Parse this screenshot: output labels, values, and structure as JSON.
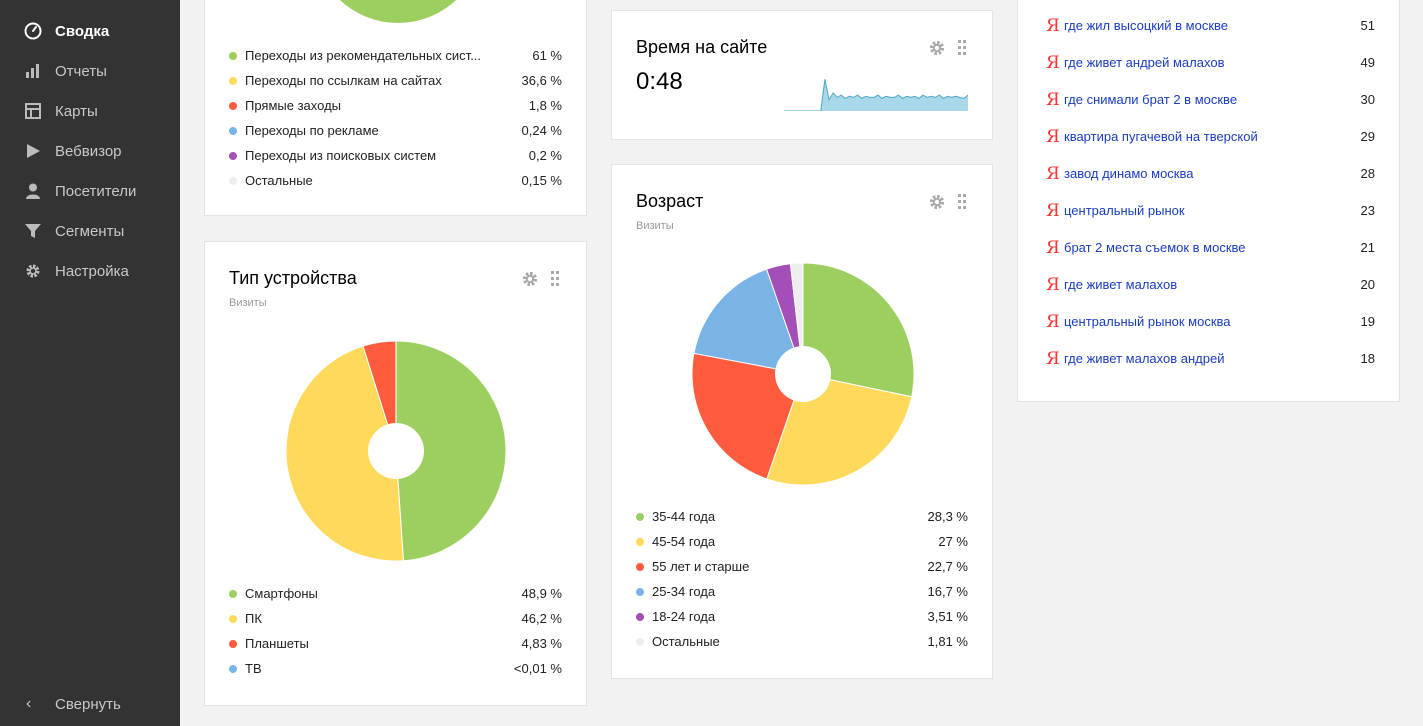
{
  "sidebar": {
    "items": [
      {
        "label": "Сводка",
        "icon": "gauge-icon",
        "active": true
      },
      {
        "label": "Отчеты",
        "icon": "bar-chart-icon",
        "active": false
      },
      {
        "label": "Карты",
        "icon": "map-icon",
        "active": false
      },
      {
        "label": "Вебвизор",
        "icon": "play-icon",
        "active": false
      },
      {
        "label": "Посетители",
        "icon": "person-icon",
        "active": false
      },
      {
        "label": "Сегменты",
        "icon": "funnel-icon",
        "active": false
      },
      {
        "label": "Настройка",
        "icon": "gear-icon",
        "active": false
      }
    ],
    "collapse_label": "Свернуть",
    "collapse_icon": "chevron-left-icon"
  },
  "sources": {
    "rows": [
      {
        "name": "Переходы из рекомендательных сист...",
        "value": "61 %",
        "color": "#9ccf5f"
      },
      {
        "name": "Переходы по ссылкам на сайтах",
        "value": "36,6 %",
        "color": "#ffd95c"
      },
      {
        "name": "Прямые заходы",
        "value": "1,8 %",
        "color": "#ff5b3e"
      },
      {
        "name": "Переходы по рекламе",
        "value": "0,24 %",
        "color": "#7ab4e6"
      },
      {
        "name": "Переходы из поисковых систем",
        "value": "0,2 %",
        "color": "#a44fb8"
      },
      {
        "name": "Остальные",
        "value": "0,15 %",
        "color": "#eeeeee"
      }
    ]
  },
  "devices": {
    "title": "Тип устройства",
    "subtitle": "Визиты",
    "rows": [
      {
        "name": "Смартфоны",
        "value": "48,9 %",
        "color": "#9ccf5f"
      },
      {
        "name": "ПК",
        "value": "46,2 %",
        "color": "#ffd95c"
      },
      {
        "name": "Планшеты",
        "value": "4,83 %",
        "color": "#ff5b3e"
      },
      {
        "name": "ТВ",
        "value": "<0,01 %",
        "color": "#7ab4e6"
      }
    ]
  },
  "time_on_site": {
    "title": "Время на сайте",
    "value": "0:48",
    "sparkline_color": "#a8d8ea"
  },
  "age": {
    "title": "Возраст",
    "subtitle": "Визиты",
    "rows": [
      {
        "name": "35-44 года",
        "value": "28,3 %",
        "color": "#9ccf5f"
      },
      {
        "name": "45-54 года",
        "value": "27 %",
        "color": "#ffd95c"
      },
      {
        "name": "55 лет и старше",
        "value": "22,7 %",
        "color": "#ff5b3e"
      },
      {
        "name": "25-34 года",
        "value": "16,7 %",
        "color": "#7ab4e6"
      },
      {
        "name": "18-24 года",
        "value": "3,51 %",
        "color": "#a44fb8"
      },
      {
        "name": "Остальные",
        "value": "1,81 %",
        "color": "#eeeeee"
      }
    ]
  },
  "phrases": {
    "icon": "yandex-icon",
    "rows": [
      {
        "text": "где жил высоцкий в москве",
        "count": "51"
      },
      {
        "text": "где живет андрей малахов",
        "count": "49"
      },
      {
        "text": "где снимали брат 2 в москве",
        "count": "30"
      },
      {
        "text": "квартира пугачевой на тверской",
        "count": "29"
      },
      {
        "text": "завод динамо москва",
        "count": "28"
      },
      {
        "text": "центральный рынок",
        "count": "23"
      },
      {
        "text": "брат 2 места съемок в москве",
        "count": "21"
      },
      {
        "text": "где живет малахов",
        "count": "20"
      },
      {
        "text": "центральный рынок москва",
        "count": "19"
      },
      {
        "text": "где живет малахов андрей",
        "count": "18"
      }
    ]
  },
  "chart_data": [
    {
      "type": "pie",
      "title": "Тип устройства",
      "subtitle": "Визиты",
      "categories": [
        "Смартфоны",
        "ПК",
        "Планшеты",
        "ТВ"
      ],
      "values": [
        48.9,
        46.2,
        4.83,
        0.01
      ],
      "colors": [
        "#9ccf5f",
        "#ffd95c",
        "#ff5b3e",
        "#7ab4e6"
      ],
      "donut": true
    },
    {
      "type": "pie",
      "title": "Возраст",
      "subtitle": "Визиты",
      "categories": [
        "35-44 года",
        "45-54 года",
        "55 лет и старше",
        "25-34 года",
        "18-24 года",
        "Остальные"
      ],
      "values": [
        28.3,
        27,
        22.7,
        16.7,
        3.51,
        1.81
      ],
      "colors": [
        "#9ccf5f",
        "#ffd95c",
        "#ff5b3e",
        "#7ab4e6",
        "#a44fb8",
        "#eeeeee"
      ],
      "donut": true
    },
    {
      "type": "line",
      "title": "Время на сайте",
      "x": [
        0,
        1,
        2,
        3,
        4,
        5,
        6,
        7,
        8,
        9,
        10,
        11,
        12,
        13,
        14,
        15,
        16,
        17,
        18,
        19,
        20,
        21,
        22,
        23,
        24,
        25,
        26,
        27,
        28,
        29,
        30,
        31,
        32,
        33,
        34,
        35,
        36,
        37,
        38,
        39,
        40,
        41,
        42,
        43,
        44,
        45
      ],
      "values": [
        0,
        0,
        0,
        0,
        0,
        0,
        0,
        0,
        0,
        0,
        28,
        10,
        16,
        12,
        14,
        11,
        13,
        12,
        14,
        11,
        13,
        12,
        12,
        14,
        11,
        13,
        12,
        12,
        14,
        11,
        13,
        12,
        13,
        11,
        14,
        12,
        13,
        12,
        14,
        11,
        13,
        12,
        13,
        12,
        11,
        14
      ],
      "area": true
    }
  ]
}
